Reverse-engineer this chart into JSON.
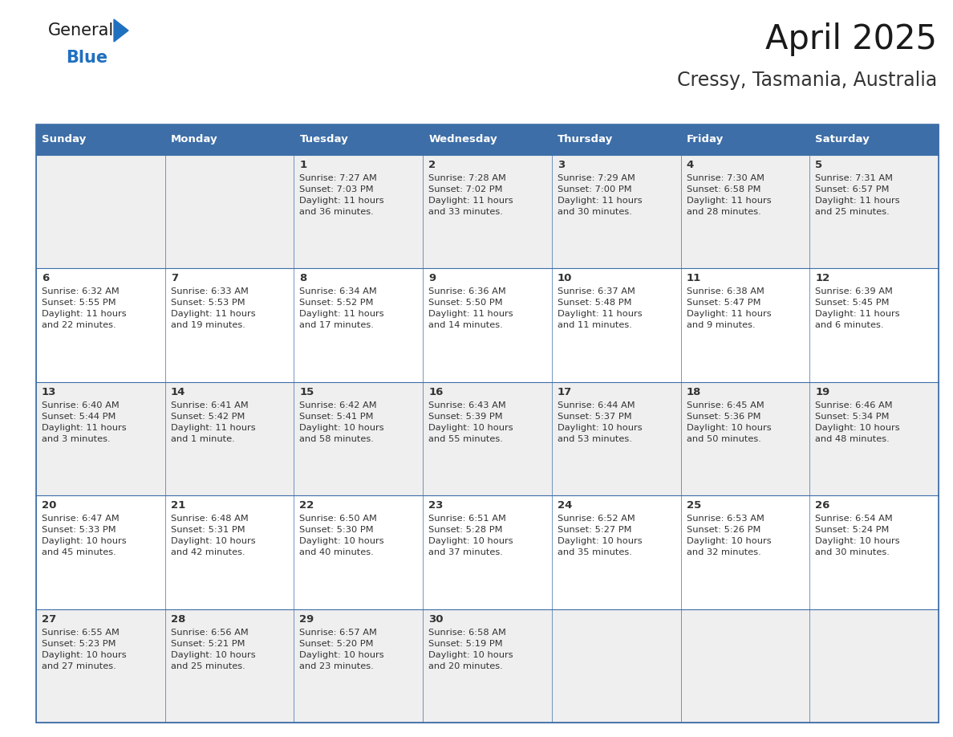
{
  "title": "April 2025",
  "subtitle": "Cressy, Tasmania, Australia",
  "header_bg": "#3d6ea8",
  "header_text": "#ffffff",
  "row_bg": [
    "#efefef",
    "#ffffff",
    "#efefef",
    "#ffffff",
    "#efefef"
  ],
  "cell_text": "#333333",
  "day_headers": [
    "Sunday",
    "Monday",
    "Tuesday",
    "Wednesday",
    "Thursday",
    "Friday",
    "Saturday"
  ],
  "days": [
    {
      "date": 1,
      "col": 2,
      "row": 0,
      "sunrise": "7:27 AM",
      "sunset": "7:03 PM",
      "daylight_h": "11 hours",
      "daylight_m": "and 36 minutes."
    },
    {
      "date": 2,
      "col": 3,
      "row": 0,
      "sunrise": "7:28 AM",
      "sunset": "7:02 PM",
      "daylight_h": "11 hours",
      "daylight_m": "and 33 minutes."
    },
    {
      "date": 3,
      "col": 4,
      "row": 0,
      "sunrise": "7:29 AM",
      "sunset": "7:00 PM",
      "daylight_h": "11 hours",
      "daylight_m": "and 30 minutes."
    },
    {
      "date": 4,
      "col": 5,
      "row": 0,
      "sunrise": "7:30 AM",
      "sunset": "6:58 PM",
      "daylight_h": "11 hours",
      "daylight_m": "and 28 minutes."
    },
    {
      "date": 5,
      "col": 6,
      "row": 0,
      "sunrise": "7:31 AM",
      "sunset": "6:57 PM",
      "daylight_h": "11 hours",
      "daylight_m": "and 25 minutes."
    },
    {
      "date": 6,
      "col": 0,
      "row": 1,
      "sunrise": "6:32 AM",
      "sunset": "5:55 PM",
      "daylight_h": "11 hours",
      "daylight_m": "and 22 minutes."
    },
    {
      "date": 7,
      "col": 1,
      "row": 1,
      "sunrise": "6:33 AM",
      "sunset": "5:53 PM",
      "daylight_h": "11 hours",
      "daylight_m": "and 19 minutes."
    },
    {
      "date": 8,
      "col": 2,
      "row": 1,
      "sunrise": "6:34 AM",
      "sunset": "5:52 PM",
      "daylight_h": "11 hours",
      "daylight_m": "and 17 minutes."
    },
    {
      "date": 9,
      "col": 3,
      "row": 1,
      "sunrise": "6:36 AM",
      "sunset": "5:50 PM",
      "daylight_h": "11 hours",
      "daylight_m": "and 14 minutes."
    },
    {
      "date": 10,
      "col": 4,
      "row": 1,
      "sunrise": "6:37 AM",
      "sunset": "5:48 PM",
      "daylight_h": "11 hours",
      "daylight_m": "and 11 minutes."
    },
    {
      "date": 11,
      "col": 5,
      "row": 1,
      "sunrise": "6:38 AM",
      "sunset": "5:47 PM",
      "daylight_h": "11 hours",
      "daylight_m": "and 9 minutes."
    },
    {
      "date": 12,
      "col": 6,
      "row": 1,
      "sunrise": "6:39 AM",
      "sunset": "5:45 PM",
      "daylight_h": "11 hours",
      "daylight_m": "and 6 minutes."
    },
    {
      "date": 13,
      "col": 0,
      "row": 2,
      "sunrise": "6:40 AM",
      "sunset": "5:44 PM",
      "daylight_h": "11 hours",
      "daylight_m": "and 3 minutes."
    },
    {
      "date": 14,
      "col": 1,
      "row": 2,
      "sunrise": "6:41 AM",
      "sunset": "5:42 PM",
      "daylight_h": "11 hours",
      "daylight_m": "and 1 minute."
    },
    {
      "date": 15,
      "col": 2,
      "row": 2,
      "sunrise": "6:42 AM",
      "sunset": "5:41 PM",
      "daylight_h": "10 hours",
      "daylight_m": "and 58 minutes."
    },
    {
      "date": 16,
      "col": 3,
      "row": 2,
      "sunrise": "6:43 AM",
      "sunset": "5:39 PM",
      "daylight_h": "10 hours",
      "daylight_m": "and 55 minutes."
    },
    {
      "date": 17,
      "col": 4,
      "row": 2,
      "sunrise": "6:44 AM",
      "sunset": "5:37 PM",
      "daylight_h": "10 hours",
      "daylight_m": "and 53 minutes."
    },
    {
      "date": 18,
      "col": 5,
      "row": 2,
      "sunrise": "6:45 AM",
      "sunset": "5:36 PM",
      "daylight_h": "10 hours",
      "daylight_m": "and 50 minutes."
    },
    {
      "date": 19,
      "col": 6,
      "row": 2,
      "sunrise": "6:46 AM",
      "sunset": "5:34 PM",
      "daylight_h": "10 hours",
      "daylight_m": "and 48 minutes."
    },
    {
      "date": 20,
      "col": 0,
      "row": 3,
      "sunrise": "6:47 AM",
      "sunset": "5:33 PM",
      "daylight_h": "10 hours",
      "daylight_m": "and 45 minutes."
    },
    {
      "date": 21,
      "col": 1,
      "row": 3,
      "sunrise": "6:48 AM",
      "sunset": "5:31 PM",
      "daylight_h": "10 hours",
      "daylight_m": "and 42 minutes."
    },
    {
      "date": 22,
      "col": 2,
      "row": 3,
      "sunrise": "6:50 AM",
      "sunset": "5:30 PM",
      "daylight_h": "10 hours",
      "daylight_m": "and 40 minutes."
    },
    {
      "date": 23,
      "col": 3,
      "row": 3,
      "sunrise": "6:51 AM",
      "sunset": "5:28 PM",
      "daylight_h": "10 hours",
      "daylight_m": "and 37 minutes."
    },
    {
      "date": 24,
      "col": 4,
      "row": 3,
      "sunrise": "6:52 AM",
      "sunset": "5:27 PM",
      "daylight_h": "10 hours",
      "daylight_m": "and 35 minutes."
    },
    {
      "date": 25,
      "col": 5,
      "row": 3,
      "sunrise": "6:53 AM",
      "sunset": "5:26 PM",
      "daylight_h": "10 hours",
      "daylight_m": "and 32 minutes."
    },
    {
      "date": 26,
      "col": 6,
      "row": 3,
      "sunrise": "6:54 AM",
      "sunset": "5:24 PM",
      "daylight_h": "10 hours",
      "daylight_m": "and 30 minutes."
    },
    {
      "date": 27,
      "col": 0,
      "row": 4,
      "sunrise": "6:55 AM",
      "sunset": "5:23 PM",
      "daylight_h": "10 hours",
      "daylight_m": "and 27 minutes."
    },
    {
      "date": 28,
      "col": 1,
      "row": 4,
      "sunrise": "6:56 AM",
      "sunset": "5:21 PM",
      "daylight_h": "10 hours",
      "daylight_m": "and 25 minutes."
    },
    {
      "date": 29,
      "col": 2,
      "row": 4,
      "sunrise": "6:57 AM",
      "sunset": "5:20 PM",
      "daylight_h": "10 hours",
      "daylight_m": "and 23 minutes."
    },
    {
      "date": 30,
      "col": 3,
      "row": 4,
      "sunrise": "6:58 AM",
      "sunset": "5:19 PM",
      "daylight_h": "10 hours",
      "daylight_m": "and 20 minutes."
    }
  ],
  "num_rows": 5,
  "num_cols": 7,
  "logo_color_general": "#1a1a1a",
  "logo_color_blue": "#2070c0",
  "logo_triangle_color": "#2070c0",
  "border_color": "#3d6ea8",
  "line_color": "#3d6ea8"
}
